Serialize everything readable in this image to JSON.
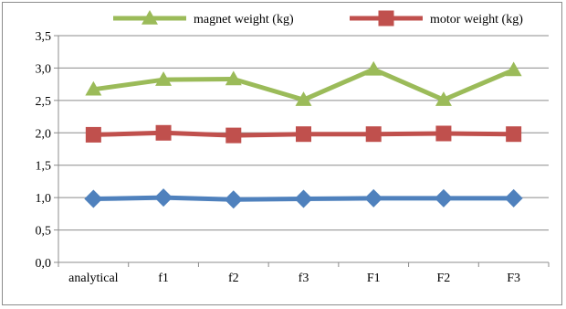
{
  "chart_data": {
    "type": "line",
    "categories": [
      "analytical",
      "f1",
      "f2",
      "f3",
      "F1",
      "F2",
      "F3"
    ],
    "series": [
      {
        "name": "magnet weight (kg)",
        "values": [
          2.67,
          2.82,
          2.83,
          2.51,
          2.98,
          2.51,
          2.97
        ],
        "color": "#9BBB59",
        "marker": "triangle"
      },
      {
        "name": "motor weight (kg)",
        "values": [
          1.97,
          2.0,
          1.96,
          1.98,
          1.98,
          1.99,
          1.98
        ],
        "color": "#C0504D",
        "marker": "square"
      },
      {
        "name": "",
        "values": [
          0.98,
          1.0,
          0.97,
          0.98,
          0.99,
          0.99,
          0.99
        ],
        "color": "#4F81BD",
        "marker": "diamond"
      }
    ],
    "ylim": [
      0,
      3.5
    ],
    "yticks": [
      "0,0",
      "0,5",
      "1,0",
      "1,5",
      "2,0",
      "2,5",
      "3,0",
      "3,5"
    ],
    "grid": true,
    "legend_position": "top"
  }
}
